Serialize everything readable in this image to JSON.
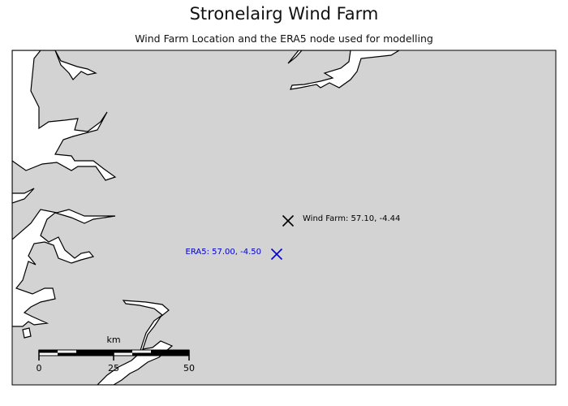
{
  "title": "Stronelairg Wind Farm",
  "subtitle": "Wind Farm Location and the ERA5 node used for modelling",
  "colors": {
    "land": "#d3d3d3",
    "water": "#ffffff",
    "coastline": "#000000",
    "wind_farm_marker": "#000000",
    "era5_marker": "#0000cc"
  },
  "markers": [
    {
      "id": "wind_farm",
      "label": "Wind Farm: 57.10, -4.44",
      "lat": 57.1,
      "lon": -4.44,
      "symbol": "x",
      "color": "#000000"
    },
    {
      "id": "era5",
      "label": "ERA5: 57.00, -4.50",
      "lat": 57.0,
      "lon": -4.5,
      "symbol": "x",
      "color": "#0000cc"
    }
  ],
  "scale_bar": {
    "unit_label": "km",
    "ticks": [
      "0",
      "25",
      "50"
    ]
  }
}
